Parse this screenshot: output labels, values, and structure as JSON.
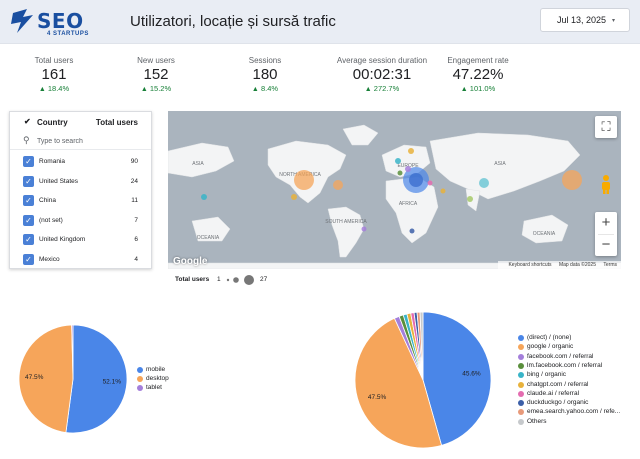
{
  "header": {
    "logo_text": "SEO",
    "logo_sub": "4 STARTUPS",
    "title": "Utilizatori, locație și sursă trafic",
    "date_label": "Jul 13, 2025",
    "caret_glyph": "▾"
  },
  "kpis": [
    {
      "label": "Total users",
      "value": "161",
      "delta": "18.4%"
    },
    {
      "label": "New users",
      "value": "152",
      "delta": "15.2%"
    },
    {
      "label": "Sessions",
      "value": "180",
      "delta": "8.4%"
    },
    {
      "label": "Average session duration",
      "value": "00:02:31",
      "delta": "272.7%"
    },
    {
      "label": "Engagement rate",
      "value": "47.22%",
      "delta": "101.0%"
    }
  ],
  "delta_arrow": "▲",
  "country_table": {
    "col_country": "Country",
    "col_users": "Total users",
    "search_placeholder": "Type to search",
    "rows": [
      {
        "country": "Romania",
        "users": "90"
      },
      {
        "country": "United States",
        "users": "24"
      },
      {
        "country": "China",
        "users": "11"
      },
      {
        "country": "(not set)",
        "users": "7"
      },
      {
        "country": "United Kingdom",
        "users": "6"
      },
      {
        "country": "Mexico",
        "users": "4"
      }
    ]
  },
  "map": {
    "labels": {
      "north_america": "NORTH AMERICA",
      "south_america": "SOUTH AMERICA",
      "europe": "EUROPE",
      "africa": "AFRICA",
      "asia_left": "ASIA",
      "asia_right": "ASIA",
      "oceania_left": "OCEANIA",
      "oceania_right": "OCEANIA"
    },
    "google": "Google",
    "attribution": {
      "shortcuts": "Keyboard shortcuts",
      "data": "Map data ©2025",
      "terms": "Terms"
    },
    "zoom_in": "+",
    "zoom_out": "−",
    "fullscreen_glyph": "⛶"
  },
  "size_legend": {
    "label": "Total users",
    "min": "1",
    "max": "27"
  },
  "device_pie": {
    "slices": [
      {
        "name": "mobile",
        "value": 52.1,
        "label": "52.1%",
        "color": "#4a86e8"
      },
      {
        "name": "desktop",
        "value": 47.5,
        "label": "47.5%",
        "color": "#f6a55a"
      },
      {
        "name": "tablet",
        "value": 0.4,
        "label": "",
        "color": "#a47fdb"
      }
    ]
  },
  "source_pie": {
    "slices": [
      {
        "name": "(direct) / (none)",
        "value": 45.6,
        "label": "45.6%",
        "color": "#4a86e8"
      },
      {
        "name": "google / organic",
        "value": 47.5,
        "label": "47.5%",
        "color": "#f6a55a"
      },
      {
        "name": "facebook.com / referral",
        "value": 1.2,
        "label": "",
        "color": "#a47fdb"
      },
      {
        "name": "lm.facebook.com / referral",
        "value": 1.0,
        "label": "",
        "color": "#5a8f3c"
      },
      {
        "name": "bing / organic",
        "value": 0.9,
        "label": "",
        "color": "#39b4c8"
      },
      {
        "name": "chatgpt.com / referral",
        "value": 0.9,
        "label": "",
        "color": "#e8b23c"
      },
      {
        "name": "claude.ai / referral",
        "value": 0.8,
        "label": "",
        "color": "#e46cb0"
      },
      {
        "name": "duckduckgo / organic",
        "value": 0.7,
        "label": "",
        "color": "#3c5fa8"
      },
      {
        "name": "emea.search.yahoo.com / refe...",
        "value": 0.7,
        "label": "",
        "color": "#e89a7a"
      },
      {
        "name": "Others",
        "value": 0.7,
        "label": "",
        "color": "#c6c9cc"
      }
    ]
  }
}
